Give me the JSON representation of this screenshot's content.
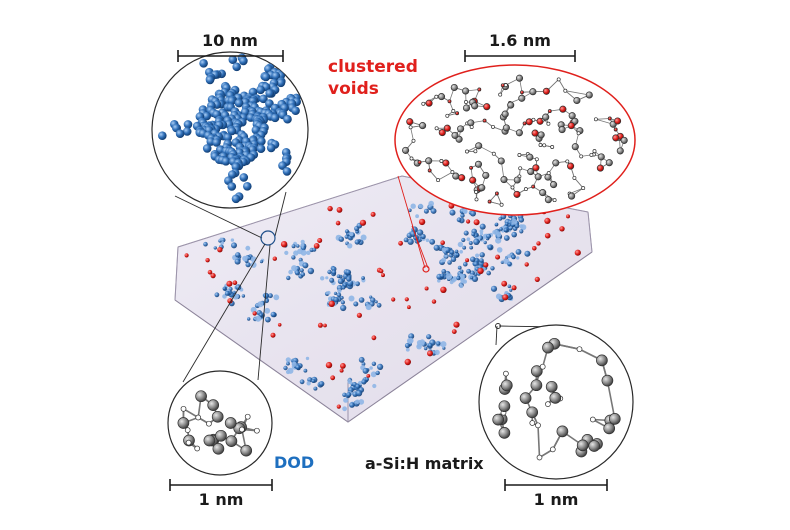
{
  "labels": {
    "scale_top_left": "10 nm",
    "scale_top_right": "1.6 nm",
    "clustered_voids_line1": "clustered",
    "clustered_voids_line2": "voids",
    "dod": "DOD",
    "matrix": "a-Si:H matrix",
    "scale_bottom_left": "1 nm",
    "scale_bottom_right": "1 nm"
  },
  "colors": {
    "void_red": "#e0201c",
    "dod_blue": "#1e6fbf",
    "sphere_blue": "#2f6fb8",
    "atom_gray": "#8a8a8a",
    "box_fill": "#e9e4f0",
    "outline": "#2a2a2a"
  }
}
